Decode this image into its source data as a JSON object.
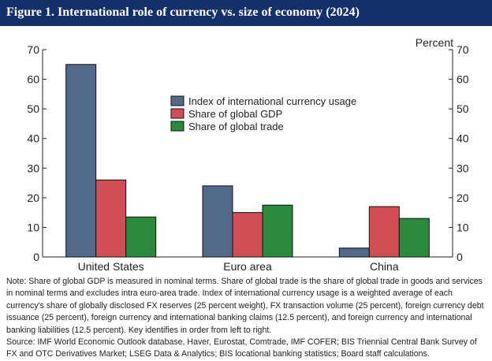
{
  "header": {
    "title": "Figure 1. International role of currency vs. size of economy (2024)",
    "background": "#14306a"
  },
  "chart_data": {
    "type": "bar",
    "title": "Figure 1. International role of currency vs. size of economy (2024)",
    "xlabel": "",
    "ylabel_right": "Percent",
    "categories": [
      "United States",
      "Euro area",
      "China"
    ],
    "series": [
      {
        "name": "Index of international currency usage",
        "color": "#52698a",
        "values": [
          65,
          24,
          3
        ]
      },
      {
        "name": "Share of global GDP",
        "color": "#d14e55",
        "values": [
          26,
          15,
          17
        ]
      },
      {
        "name": "Share of global trade",
        "color": "#2b8a3e",
        "values": [
          13.5,
          17.5,
          13
        ]
      }
    ],
    "ylim": [
      0,
      70
    ],
    "yticks": [
      0,
      10,
      20,
      30,
      40,
      50,
      60,
      70
    ],
    "grid": false,
    "legend_position": "center-right"
  },
  "notes": {
    "note": "Note: Share of global GDP is measured in nominal terms. Share of global trade is the share of global trade in goods and services in nominal terms and excludes intra euro-area trade. Index of international currency usage is a weighted average of each currency's share of globally disclosed FX reserves (25 percent weight), FX transaction volume (25 percent), foreign currency debt issuance (25 percent), foreign currency and international banking claims (12.5 percent), and foreign currency and international banking liabilities (12.5 percent). Key identifies in order from left to right.",
    "source": "Source: IMF World Economic Outlook database, Haver, Eurostat, Comtrade, IMF COFER; BIS Triennial Central Bank Survey of FX and OTC Derivatives Market; LSEG Data & Analytics; BIS locational banking statistics; Board staff calculations."
  }
}
